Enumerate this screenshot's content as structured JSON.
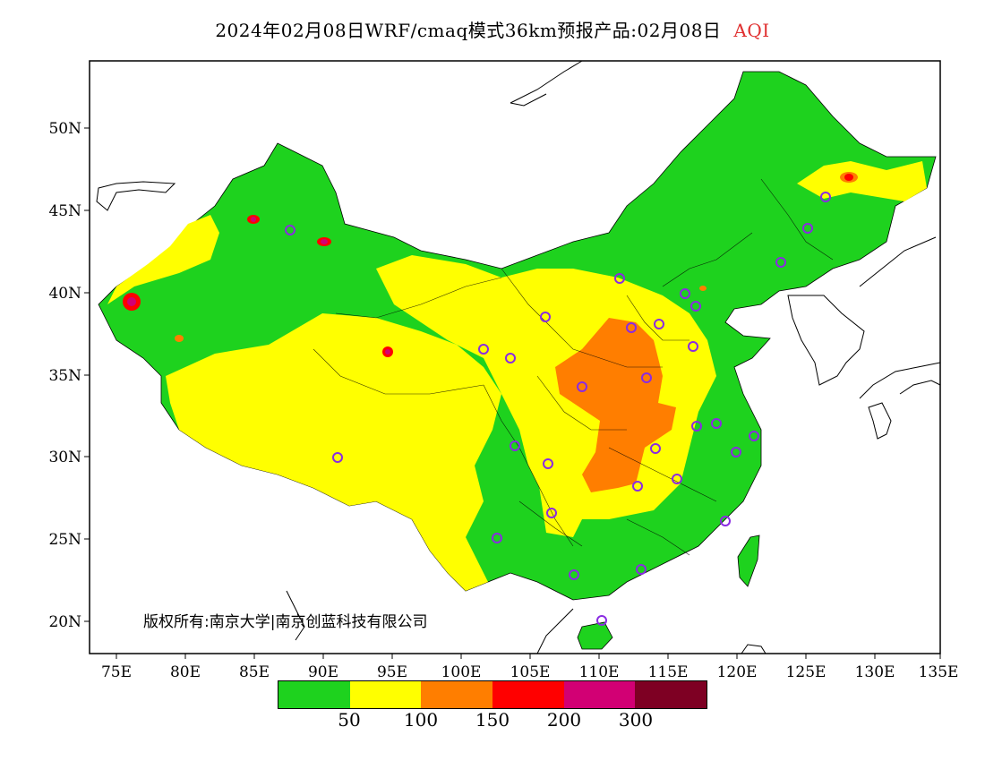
{
  "title": {
    "main": "2024年02月08日WRF/cmaq模式36km预报产品:02月08日",
    "variable": "AQI",
    "variable_color": "#e03030"
  },
  "axes": {
    "lon_ticks": [
      "75E",
      "80E",
      "85E",
      "90E",
      "95E",
      "100E",
      "105E",
      "110E",
      "115E",
      "120E",
      "125E",
      "130E",
      "135E"
    ],
    "lat_ticks": [
      "20N",
      "25N",
      "30N",
      "35N",
      "40N",
      "45N",
      "50N"
    ]
  },
  "legend": {
    "colors": [
      "#1ed21e",
      "#ffff00",
      "#ff7e00",
      "#ff0000",
      "#d20074",
      "#7e0023"
    ],
    "labels": [
      "50",
      "100",
      "150",
      "200",
      "300"
    ]
  },
  "copyright": "版权所有:南京大学|南京创蓝科技有限公司",
  "map_colors": {
    "good": "#1ed21e",
    "moderate": "#ffff00",
    "unhealthy_sensitive": "#ff7e00",
    "unhealthy": "#ff0000",
    "very_unhealthy": "#d20074",
    "hazardous": "#7e0023",
    "station_marker": "#8a2be2",
    "border": "#000000"
  }
}
